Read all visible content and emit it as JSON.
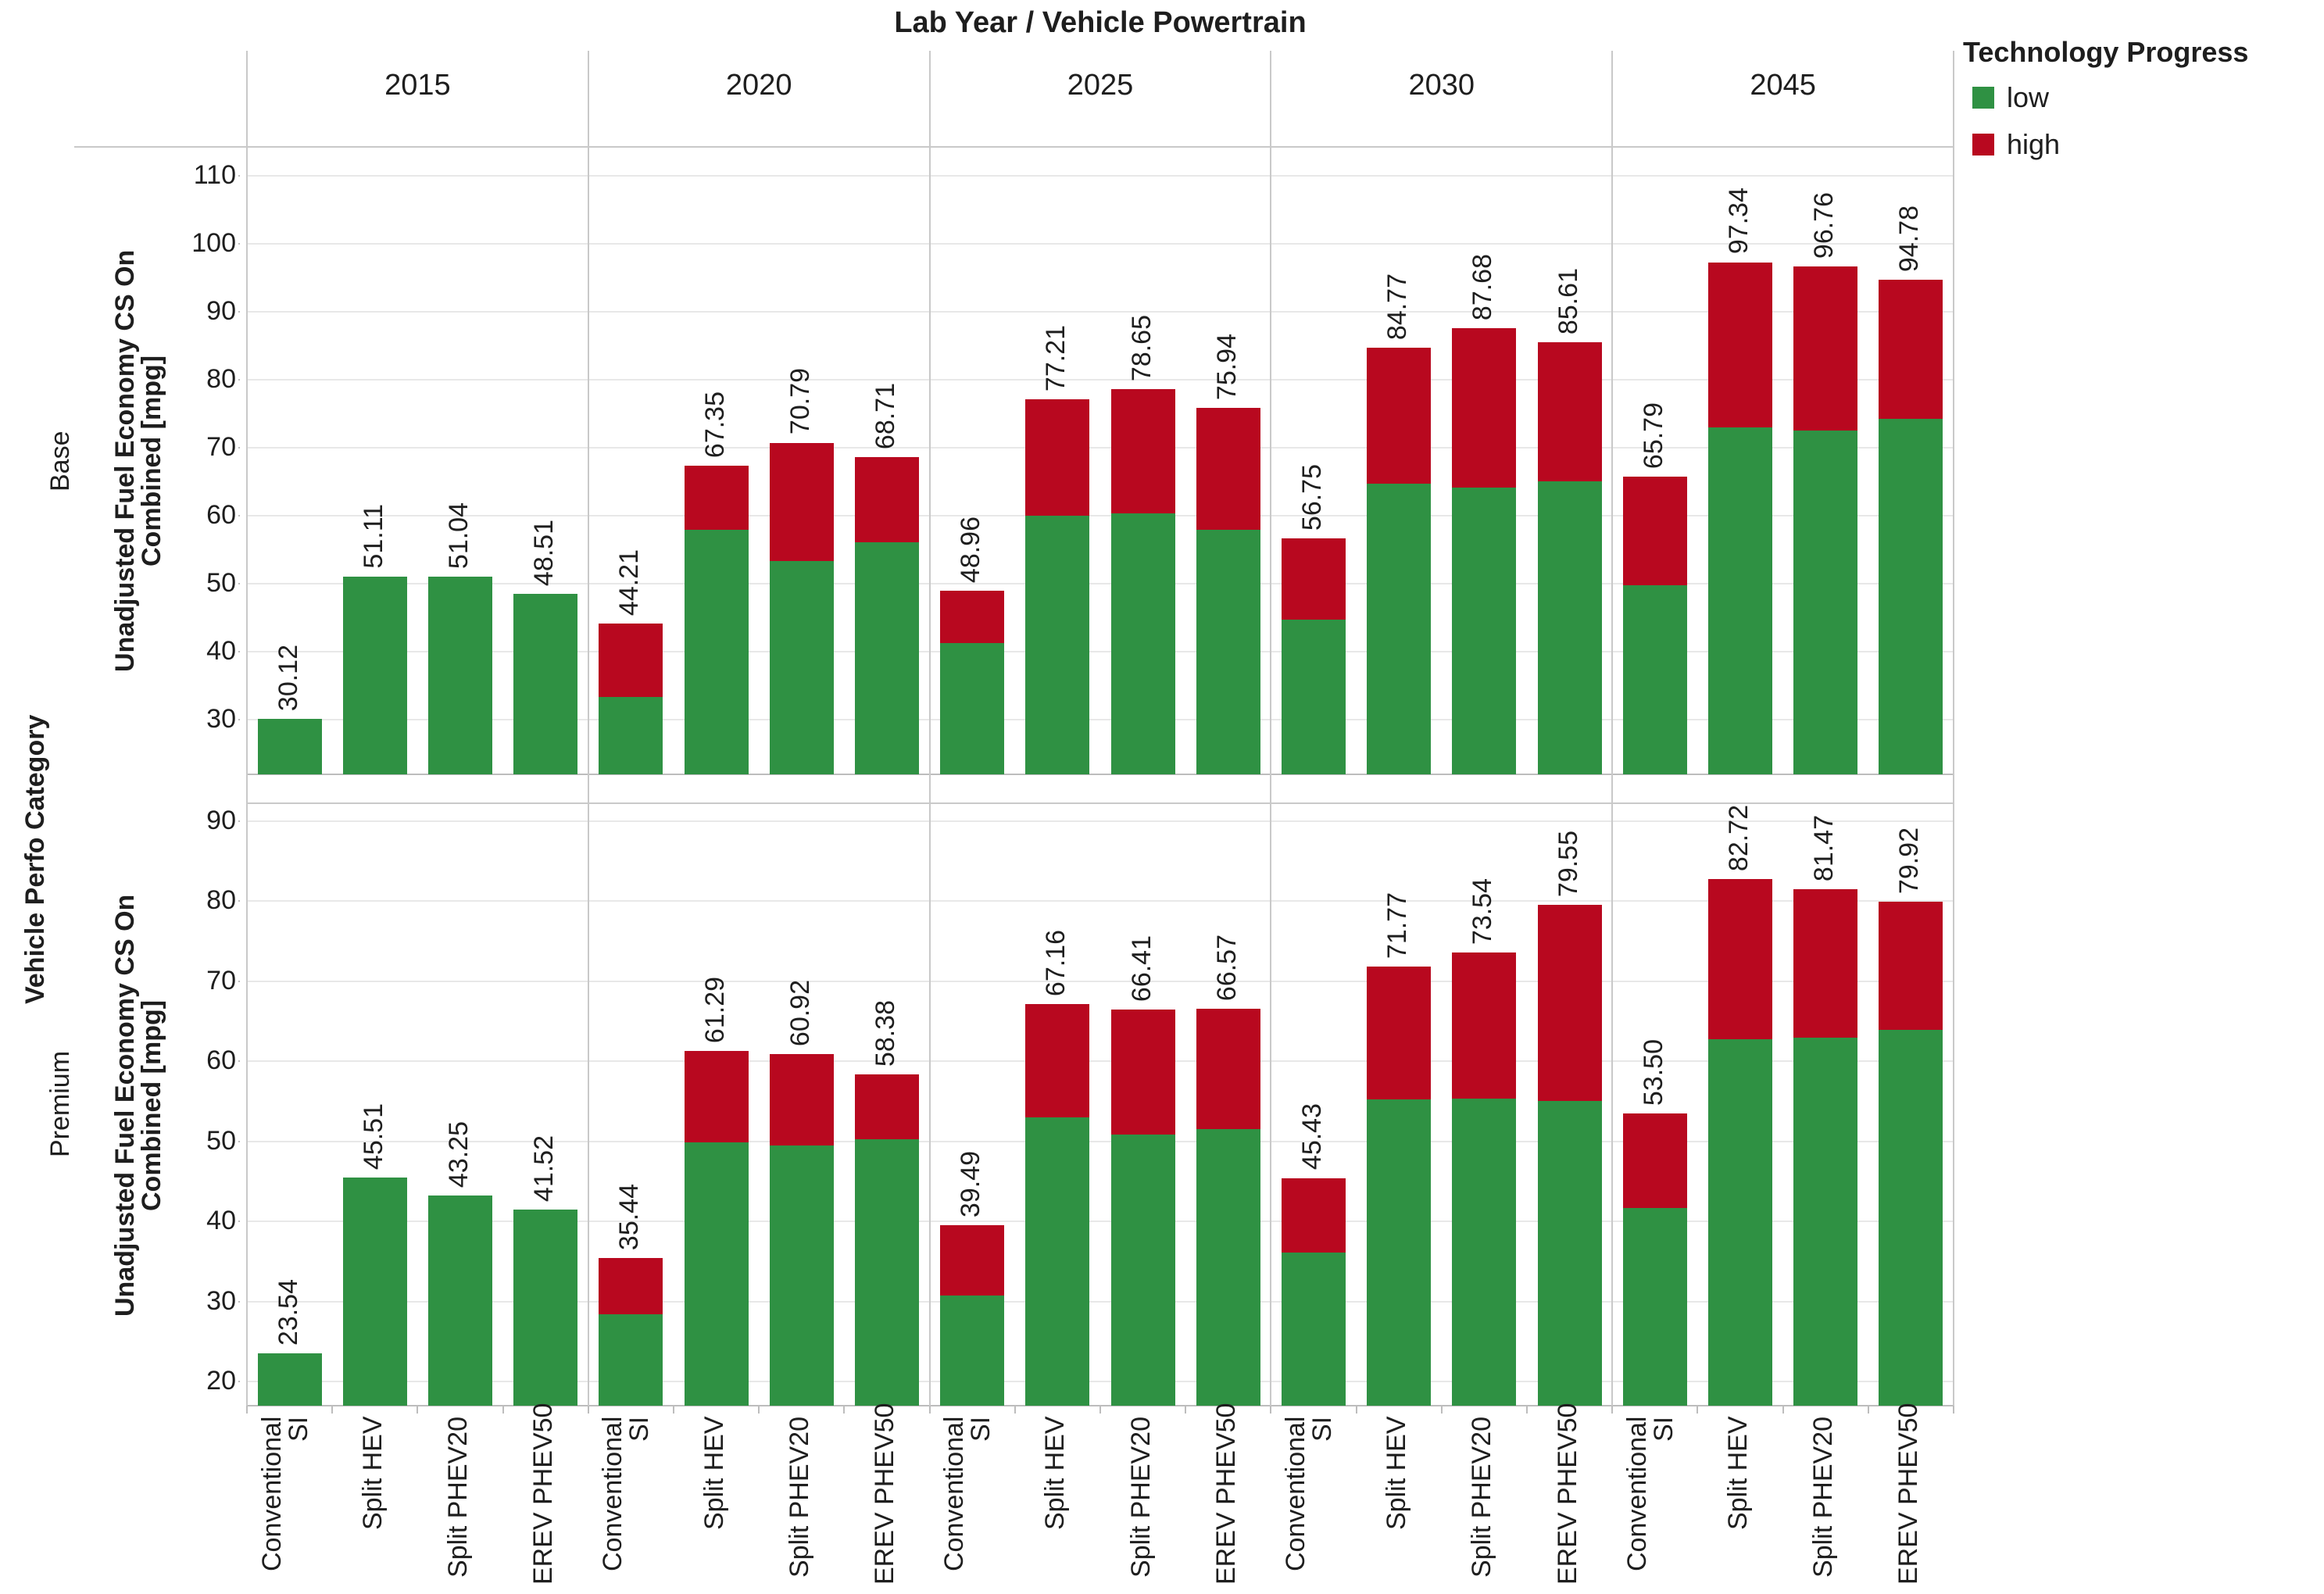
{
  "chart_data": {
    "type": "bar",
    "stacked": true,
    "title": "Lab Year  /  Vehicle Powertrain",
    "facet_columns_label": "Lab Year",
    "facet_rows_label": "Vehicle Perfo Category",
    "ylabel_line1": "Unadjusted Fuel Economy CS On",
    "ylabel_line2": "Combined [mpg]",
    "legend": {
      "title": "Technology Progress",
      "series": [
        {
          "name": "low",
          "color": "#2f9143"
        },
        {
          "name": "high",
          "color": "#b8081f"
        }
      ]
    },
    "years": [
      "2015",
      "2020",
      "2025",
      "2030",
      "2045"
    ],
    "powertrains": [
      "Conventional SI",
      "Split HEV",
      "Split PHEV20",
      "EREV PHEV50"
    ],
    "powertrain_label_lines": [
      [
        "Conventional",
        "SI"
      ],
      [
        "Split HEV"
      ],
      [
        "Split PHEV20"
      ],
      [
        "EREV PHEV50"
      ]
    ],
    "grid": true,
    "legend_position": "top-right",
    "rows": [
      {
        "category": "Base",
        "yticks": [
          30,
          40,
          50,
          60,
          70,
          80,
          90,
          100,
          110
        ],
        "ylim": [
          22,
          114.3
        ],
        "groups": [
          {
            "year": "2015",
            "low": [
              30.12,
              51.11,
              51.04,
              48.51
            ],
            "high": [
              30.12,
              51.11,
              51.04,
              48.51
            ],
            "labels": [
              "30.12",
              "51.11",
              "51.04",
              "48.51"
            ]
          },
          {
            "year": "2020",
            "low": [
              33.4,
              58.0,
              53.4,
              56.1
            ],
            "high": [
              44.21,
              67.35,
              70.79,
              68.71
            ],
            "labels": [
              "44.21",
              "67.35",
              "70.79",
              "68.71"
            ]
          },
          {
            "year": "2025",
            "low": [
              41.3,
              60.0,
              60.4,
              58.0
            ],
            "high": [
              48.96,
              77.21,
              78.65,
              75.94
            ],
            "labels": [
              "48.96",
              "77.21",
              "78.65",
              "75.94"
            ]
          },
          {
            "year": "2030",
            "low": [
              44.8,
              64.8,
              64.2,
              65.1
            ],
            "high": [
              56.75,
              84.77,
              87.68,
              85.61
            ],
            "labels": [
              "56.75",
              "84.77",
              "87.68",
              "85.61"
            ]
          },
          {
            "year": "2045",
            "low": [
              49.8,
              73.0,
              72.6,
              74.3
            ],
            "high": [
              65.79,
              97.34,
              96.76,
              94.78
            ],
            "labels": [
              "65.79",
              "97.34",
              "96.76",
              "94.78"
            ]
          }
        ]
      },
      {
        "category": "Premium",
        "yticks": [
          20,
          30,
          40,
          50,
          60,
          70,
          80,
          90
        ],
        "ylim": [
          17,
          92.2
        ],
        "groups": [
          {
            "year": "2015",
            "low": [
              23.54,
              45.51,
              43.25,
              41.52
            ],
            "high": [
              23.54,
              45.51,
              43.25,
              41.52
            ],
            "labels": [
              "23.54",
              "45.51",
              "43.25",
              "41.52"
            ]
          },
          {
            "year": "2020",
            "low": [
              28.4,
              49.9,
              49.5,
              50.3
            ],
            "high": [
              35.44,
              61.29,
              60.92,
              58.38
            ],
            "labels": [
              "35.44",
              "61.29",
              "60.92",
              "58.38"
            ]
          },
          {
            "year": "2025",
            "low": [
              30.8,
              53.0,
              50.8,
              51.5
            ],
            "high": [
              39.49,
              67.16,
              66.41,
              66.57
            ],
            "labels": [
              "39.49",
              "67.16",
              "66.41",
              "66.57"
            ]
          },
          {
            "year": "2030",
            "low": [
              36.1,
              55.2,
              55.3,
              55.0
            ],
            "high": [
              45.43,
              71.77,
              73.54,
              79.55
            ],
            "labels": [
              "45.43",
              "71.77",
              "73.54",
              "79.55"
            ]
          },
          {
            "year": "2045",
            "low": [
              41.7,
              62.7,
              62.9,
              63.9
            ],
            "high": [
              53.5,
              82.72,
              81.47,
              79.92
            ],
            "labels": [
              "53.50",
              "82.72",
              "81.47",
              "79.92"
            ]
          }
        ]
      }
    ]
  }
}
